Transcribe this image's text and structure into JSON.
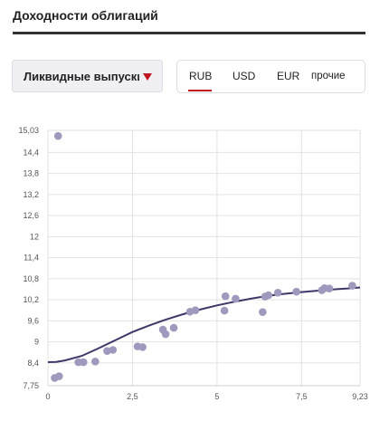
{
  "header": {
    "title": "Доходности облигаций"
  },
  "filter": {
    "selected": "Ликвидные выпуски"
  },
  "currency_tabs": [
    {
      "label": "RUB",
      "active": true
    },
    {
      "label": "USD",
      "active": false
    },
    {
      "label": "EUR",
      "active": false
    },
    {
      "label": "прочие",
      "active": false
    }
  ],
  "colors": {
    "accent": "#c0141e",
    "point": "#9f99bd",
    "curve": "#3d3868",
    "grid": "#e2e2e2"
  },
  "chart_data": {
    "type": "scatter",
    "x_ticks": [
      "0",
      "2,5",
      "5",
      "7,5",
      "9,23"
    ],
    "y_ticks": [
      "7,75",
      "8,4",
      "9",
      "9,6",
      "10,2",
      "10,8",
      "11,4",
      "12",
      "12,6",
      "13,2",
      "13,8",
      "14,4",
      "15,03"
    ],
    "xlim": [
      0,
      9.23
    ],
    "ylim": [
      7.75,
      15.03
    ],
    "grid": true,
    "points": [
      {
        "x": 0.3,
        "y": 14.87
      },
      {
        "x": 0.2,
        "y": 7.97
      },
      {
        "x": 0.33,
        "y": 8.02
      },
      {
        "x": 0.9,
        "y": 8.42
      },
      {
        "x": 1.05,
        "y": 8.42
      },
      {
        "x": 1.4,
        "y": 8.44
      },
      {
        "x": 1.75,
        "y": 8.74
      },
      {
        "x": 1.92,
        "y": 8.77
      },
      {
        "x": 2.65,
        "y": 8.87
      },
      {
        "x": 2.8,
        "y": 8.85
      },
      {
        "x": 3.4,
        "y": 9.35
      },
      {
        "x": 3.48,
        "y": 9.22
      },
      {
        "x": 3.72,
        "y": 9.4
      },
      {
        "x": 4.2,
        "y": 9.86
      },
      {
        "x": 4.36,
        "y": 9.9
      },
      {
        "x": 5.22,
        "y": 9.89
      },
      {
        "x": 5.25,
        "y": 10.3
      },
      {
        "x": 5.55,
        "y": 10.23
      },
      {
        "x": 6.35,
        "y": 9.85
      },
      {
        "x": 6.42,
        "y": 10.29
      },
      {
        "x": 6.52,
        "y": 10.33
      },
      {
        "x": 6.8,
        "y": 10.4
      },
      {
        "x": 7.35,
        "y": 10.43
      },
      {
        "x": 8.1,
        "y": 10.47
      },
      {
        "x": 8.18,
        "y": 10.53
      },
      {
        "x": 8.32,
        "y": 10.52
      },
      {
        "x": 9.0,
        "y": 10.6
      }
    ],
    "curve": [
      {
        "x": 0,
        "y": 8.42
      },
      {
        "x": 0.25,
        "y": 8.43
      },
      {
        "x": 0.5,
        "y": 8.47
      },
      {
        "x": 1.0,
        "y": 8.6
      },
      {
        "x": 1.5,
        "y": 8.82
      },
      {
        "x": 2.0,
        "y": 9.05
      },
      {
        "x": 2.5,
        "y": 9.28
      },
      {
        "x": 3.0,
        "y": 9.47
      },
      {
        "x": 3.5,
        "y": 9.64
      },
      {
        "x": 4.0,
        "y": 9.79
      },
      {
        "x": 4.5,
        "y": 9.92
      },
      {
        "x": 5.0,
        "y": 10.04
      },
      {
        "x": 5.5,
        "y": 10.14
      },
      {
        "x": 6.0,
        "y": 10.23
      },
      {
        "x": 6.5,
        "y": 10.31
      },
      {
        "x": 7.0,
        "y": 10.37
      },
      {
        "x": 7.5,
        "y": 10.42
      },
      {
        "x": 8.0,
        "y": 10.46
      },
      {
        "x": 8.5,
        "y": 10.5
      },
      {
        "x": 9.0,
        "y": 10.53
      },
      {
        "x": 9.23,
        "y": 10.55
      }
    ]
  }
}
